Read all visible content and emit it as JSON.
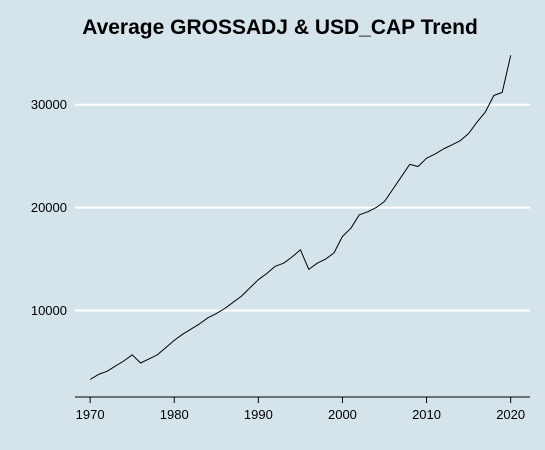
{
  "chart_data": {
    "type": "line",
    "title": "Average GROSSADJ & USD_CAP Trend",
    "xlabel": "",
    "ylabel": "",
    "xlim": [
      1968.2,
      2022.3
    ],
    "ylim": [
      1600,
      35900
    ],
    "x_ticks": [
      1970,
      1980,
      1990,
      2000,
      2010,
      2020
    ],
    "y_ticks": [
      10000,
      20000,
      30000
    ],
    "grid": "horizontal",
    "colors": {
      "background": "#d5e4eb",
      "grid": "#ffffff",
      "line": "#000000",
      "axis": "#000000"
    },
    "series": [
      {
        "x": [
          1970,
          1971,
          1972,
          1973,
          1974,
          1975,
          1976,
          1977,
          1978,
          1979,
          1980,
          1981,
          1982,
          1983,
          1984,
          1985,
          1986,
          1987,
          1988,
          1989,
          1990,
          1991,
          1992,
          1993,
          1994,
          1995,
          1996,
          1997,
          1998,
          1999,
          2000,
          2001,
          2002,
          2003,
          2004,
          2005,
          2006,
          2007,
          2008,
          2009,
          2010,
          2011,
          2012,
          2013,
          2014,
          2015,
          2016,
          2017,
          2018,
          2019,
          2020
        ],
        "y": [
          3300,
          3800,
          4100,
          4600,
          5100,
          5700,
          4900,
          5300,
          5700,
          6400,
          7100,
          7700,
          8200,
          8700,
          9300,
          9700,
          10200,
          10800,
          11400,
          12200,
          13000,
          13600,
          14300,
          14600,
          15200,
          15900,
          14000,
          14600,
          15000,
          15600,
          17200,
          18000,
          19300,
          19600,
          20000,
          20600,
          21800,
          23000,
          24200,
          24000,
          24800,
          25200,
          25700,
          26100,
          26500,
          27200,
          28300,
          29300,
          30900,
          31200,
          34800
        ]
      }
    ]
  }
}
